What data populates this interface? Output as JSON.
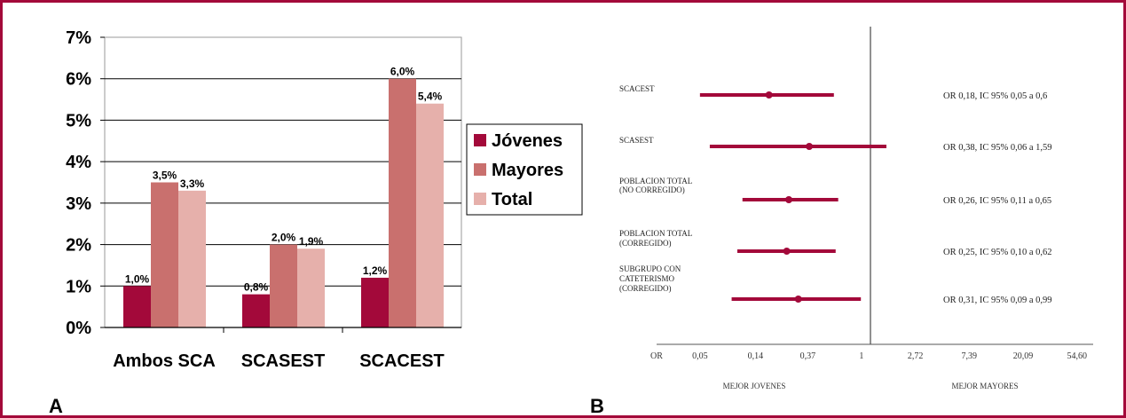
{
  "panel_a_label": "A",
  "panel_b_label": "B",
  "colors": {
    "frame": "#a3093a",
    "jovenes": "#a3093a",
    "mayores": "#c9706e",
    "total": "#e6b0ab",
    "forest": "#a3093a"
  },
  "chart_data": [
    {
      "type": "bar",
      "categories": [
        "Ambos SCA",
        "SCASEST",
        "SCACEST"
      ],
      "series": [
        {
          "name": "Jóvenes",
          "values": [
            1.0,
            0.8,
            1.2
          ],
          "labels": [
            "1,0%",
            "0,8%",
            "1,2%"
          ]
        },
        {
          "name": "Mayores",
          "values": [
            3.5,
            2.0,
            6.0
          ],
          "labels": [
            "3,5%",
            "2,0%",
            "6,0%"
          ]
        },
        {
          "name": "Total",
          "values": [
            3.3,
            1.9,
            5.4
          ],
          "labels": [
            "3,3%",
            "1,9%",
            "5,4%"
          ]
        }
      ],
      "yticks": [
        "0%",
        "1%",
        "2%",
        "3%",
        "4%",
        "5%",
        "6%",
        "7%"
      ],
      "ylim": [
        0,
        7
      ],
      "legend_position": "right",
      "grid": true
    },
    {
      "type": "scatter",
      "subtype": "forest_plot",
      "log_scale": true,
      "xlim_log": [
        -3.8,
        4.3
      ],
      "axis_prefix": "OR",
      "xticks": [
        {
          "value": 0.05,
          "label": "0,05"
        },
        {
          "value": 0.14,
          "label": "0,14"
        },
        {
          "value": 0.37,
          "label": "0,37"
        },
        {
          "value": 1,
          "label": "1"
        },
        {
          "value": 2.72,
          "label": "2,72"
        },
        {
          "value": 7.39,
          "label": "7,39"
        },
        {
          "value": 20.09,
          "label": "20,09"
        },
        {
          "value": 54.6,
          "label": "54,60"
        }
      ],
      "left_caption": "MEJOR JOVENES",
      "right_caption": "MEJOR MAYORES",
      "rows": [
        {
          "label": [
            "SCACEST"
          ],
          "or": 0.18,
          "lo": 0.05,
          "hi": 0.6,
          "text": "OR 0,18, IC 95% 0,05 a 0,6"
        },
        {
          "label": [
            "SCASEST"
          ],
          "or": 0.38,
          "lo": 0.06,
          "hi": 1.59,
          "text": "OR 0,38, IC 95% 0,06 a 1,59"
        },
        {
          "label": [
            "POBLACION TOTAL",
            "(NO CORREGIDO)"
          ],
          "or": 0.26,
          "lo": 0.11,
          "hi": 0.65,
          "text": "OR 0,26, IC 95% 0,11 a 0,65"
        },
        {
          "label": [
            "POBLACION TOTAL",
            "(CORREGIDO)"
          ],
          "or": 0.25,
          "lo": 0.1,
          "hi": 0.62,
          "text": "OR 0,25, IC 95% 0,10 a 0,62"
        },
        {
          "label": [
            "SUBGRUPO CON",
            "CATETERISMO",
            "(CORREGIDO)"
          ],
          "or": 0.31,
          "lo": 0.09,
          "hi": 0.99,
          "text": "OR 0,31, IC 95% 0,09 a 0,99"
        }
      ]
    }
  ]
}
